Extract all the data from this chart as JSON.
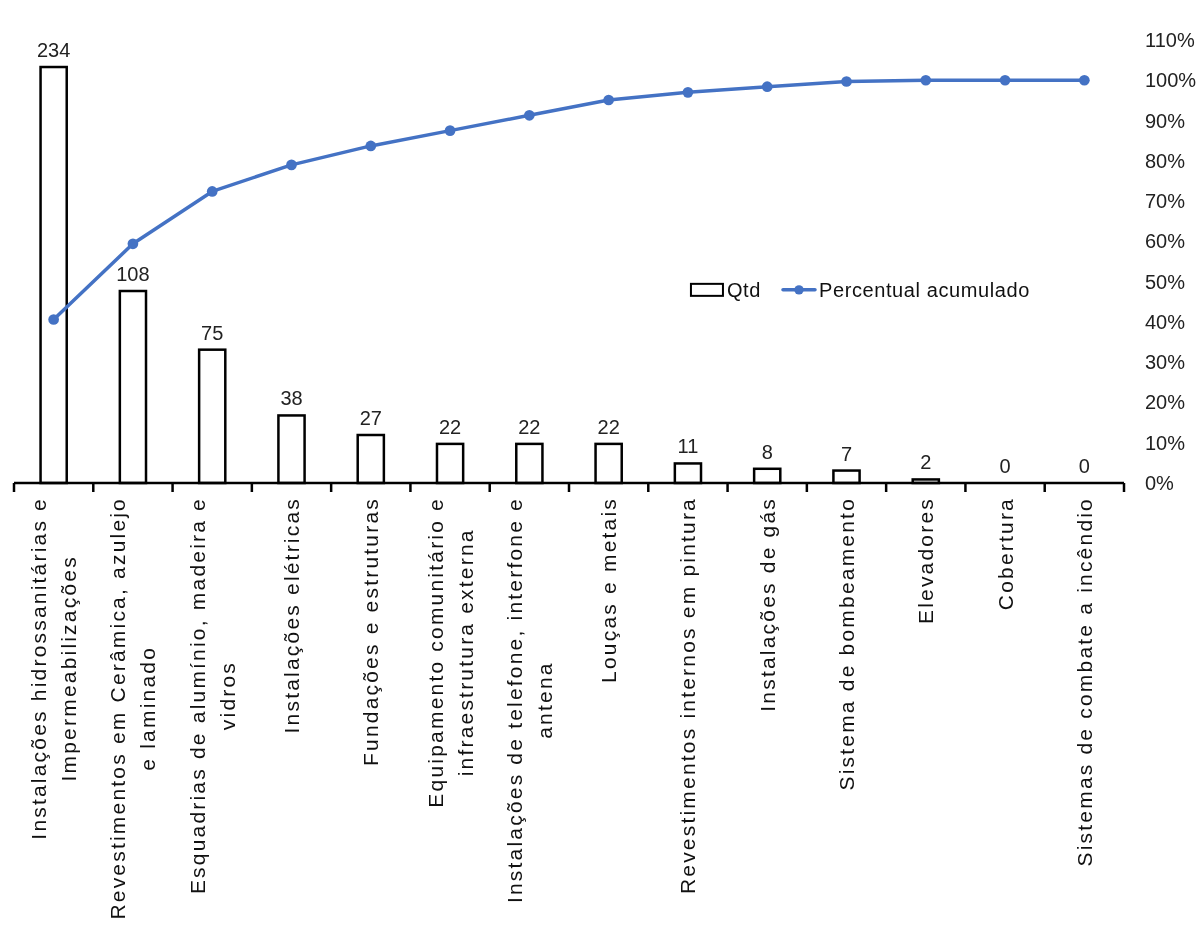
{
  "chart_data": {
    "type": "bar",
    "categories": [
      "Instalações hidrossanitárias e Impermeabilizações",
      "Revestimentos em Cerâmica, azulejo e laminado",
      "Esquadrias de alumínio, madeira e vidros",
      "Instalações elétricas",
      "Fundações e estruturas",
      "Equipamento comunitário e infraestrutura externa",
      "Instalações de telefone, interfone e antena",
      "Louças e metais",
      "Revestimentos internos em pintura",
      "Instalações de gás",
      "Sistema de bombeamento",
      "Elevadores",
      "Cobertura",
      "Sistemas de combate a incêndio"
    ],
    "series": [
      {
        "name": "Qtd",
        "color": "#ffffff",
        "values": [
          234,
          108,
          75,
          38,
          27,
          22,
          22,
          22,
          11,
          8,
          7,
          2,
          0,
          0
        ],
        "value_labels": [
          "234",
          "108",
          "75",
          "38",
          "27",
          "22",
          "22",
          "22",
          "11",
          "8",
          "7",
          "2",
          "0",
          "0"
        ]
      },
      {
        "name": "Percentual acumulado",
        "type": "line",
        "axis": "y2",
        "color": "#4472c4",
        "values": [
          40.6,
          59.4,
          72.4,
          79.0,
          83.7,
          87.5,
          91.3,
          95.1,
          97.0,
          98.4,
          99.7,
          100,
          100,
          100
        ]
      }
    ],
    "y2lim": [
      0,
      110
    ],
    "y2ticks": [
      {
        "value": 0,
        "label": "0%"
      },
      {
        "value": 10,
        "label": "10%"
      },
      {
        "value": 20,
        "label": "20%"
      },
      {
        "value": 30,
        "label": "30%"
      },
      {
        "value": 40,
        "label": "40%"
      },
      {
        "value": 50,
        "label": "50%"
      },
      {
        "value": 60,
        "label": "60%"
      },
      {
        "value": 70,
        "label": "70%"
      },
      {
        "value": 80,
        "label": "80%"
      },
      {
        "value": 90,
        "label": "90%"
      },
      {
        "value": 100,
        "label": "100%"
      },
      {
        "value": 110,
        "label": "110%"
      }
    ],
    "marker": "circle",
    "legend": "right"
  }
}
